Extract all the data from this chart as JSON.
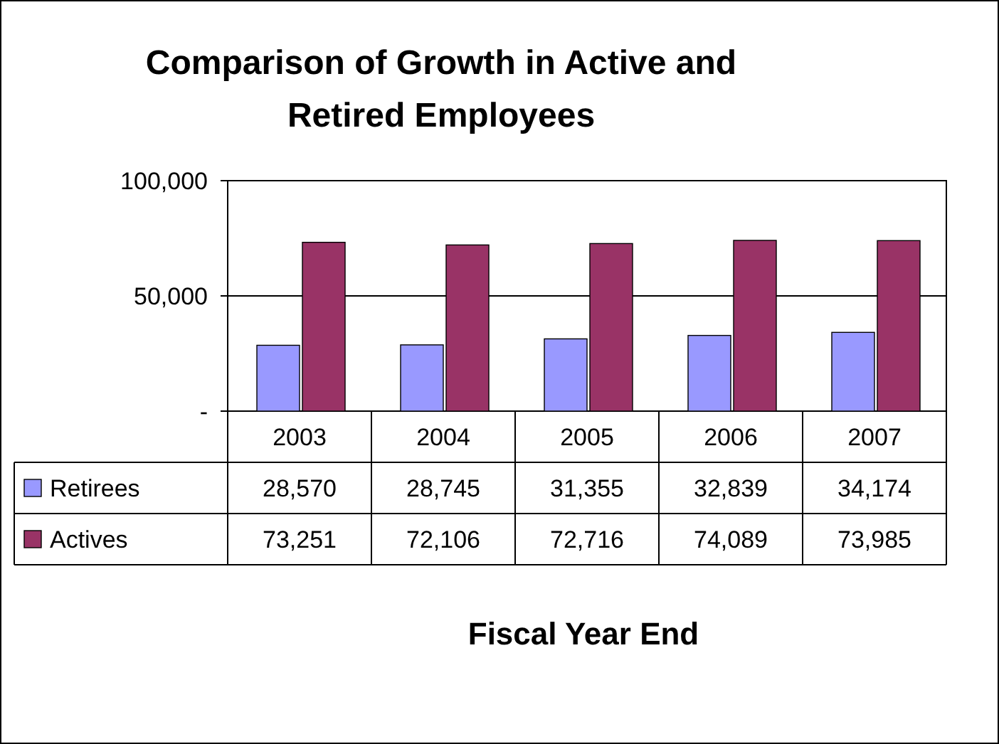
{
  "chart_data": {
    "type": "bar",
    "title": "Comparison of Growth in Active and Retired Employees",
    "annotations": [
      "Fiscal Year End"
    ],
    "categories": [
      "2003",
      "2004",
      "2005",
      "2006",
      "2007"
    ],
    "series": [
      {
        "name": "Retirees",
        "color": "#9999ff",
        "values": [
          28570,
          28745,
          31355,
          32839,
          34174
        ],
        "value_labels": [
          "28,570",
          "28,745",
          "31,355",
          "32,839",
          "34,174"
        ]
      },
      {
        "name": "Actives",
        "color": "#993366",
        "values": [
          73251,
          72106,
          72716,
          74089,
          73985
        ],
        "value_labels": [
          "73,251",
          "72,106",
          "72,716",
          "74,089",
          "73,985"
        ]
      }
    ],
    "ylim": [
      0,
      100000
    ],
    "yticks": [
      {
        "value": 0,
        "label": "-"
      },
      {
        "value": 50000,
        "label": "50,000"
      },
      {
        "value": 100000,
        "label": "100,000"
      }
    ],
    "grid": "y",
    "legend": "bottom"
  }
}
